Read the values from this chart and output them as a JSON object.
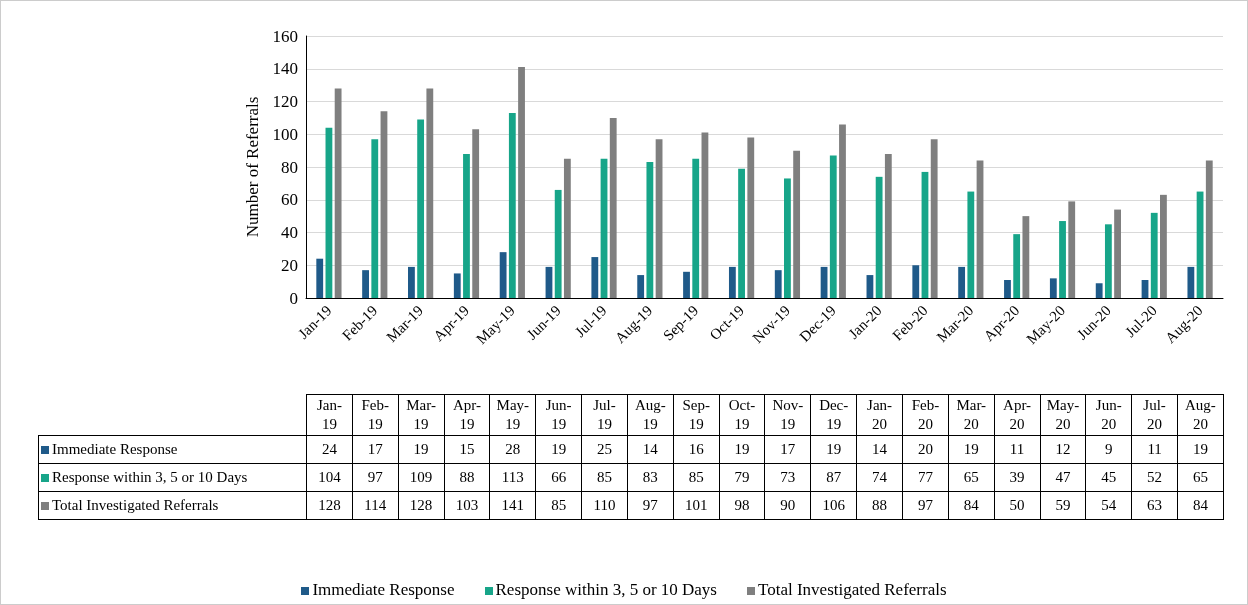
{
  "chart_data": {
    "type": "bar",
    "ylabel": "Number of Referrals",
    "categories": [
      "Jan-19",
      "Feb-19",
      "Mar-19",
      "Apr-19",
      "May-19",
      "Jun-19",
      "Jul-19",
      "Aug-19",
      "Sep-19",
      "Oct-19",
      "Nov-19",
      "Dec-19",
      "Jan-20",
      "Feb-20",
      "Mar-20",
      "Apr-20",
      "May-20",
      "Jun-20",
      "Jul-20",
      "Aug-20"
    ],
    "series": [
      {
        "name": "Immediate Response",
        "color": "#1f5a89",
        "values": [
          24,
          17,
          19,
          15,
          28,
          19,
          25,
          14,
          16,
          19,
          17,
          19,
          14,
          20,
          19,
          11,
          12,
          9,
          11,
          19
        ]
      },
      {
        "name": "Response within 3, 5 or 10 Days",
        "color": "#17a589",
        "values": [
          104,
          97,
          109,
          88,
          113,
          66,
          85,
          83,
          85,
          79,
          73,
          87,
          74,
          77,
          65,
          39,
          47,
          45,
          52,
          65
        ]
      },
      {
        "name": "Total Investigated Referrals",
        "color": "#7f7f7f",
        "values": [
          128,
          114,
          128,
          103,
          141,
          85,
          110,
          97,
          101,
          98,
          90,
          106,
          88,
          97,
          84,
          50,
          59,
          54,
          63,
          84
        ]
      }
    ],
    "ylim": [
      0,
      160
    ],
    "yticks": [
      0,
      20,
      40,
      60,
      80,
      100,
      120,
      140,
      160
    ],
    "grid": "y",
    "legend": "bottom",
    "data_labels": true
  }
}
